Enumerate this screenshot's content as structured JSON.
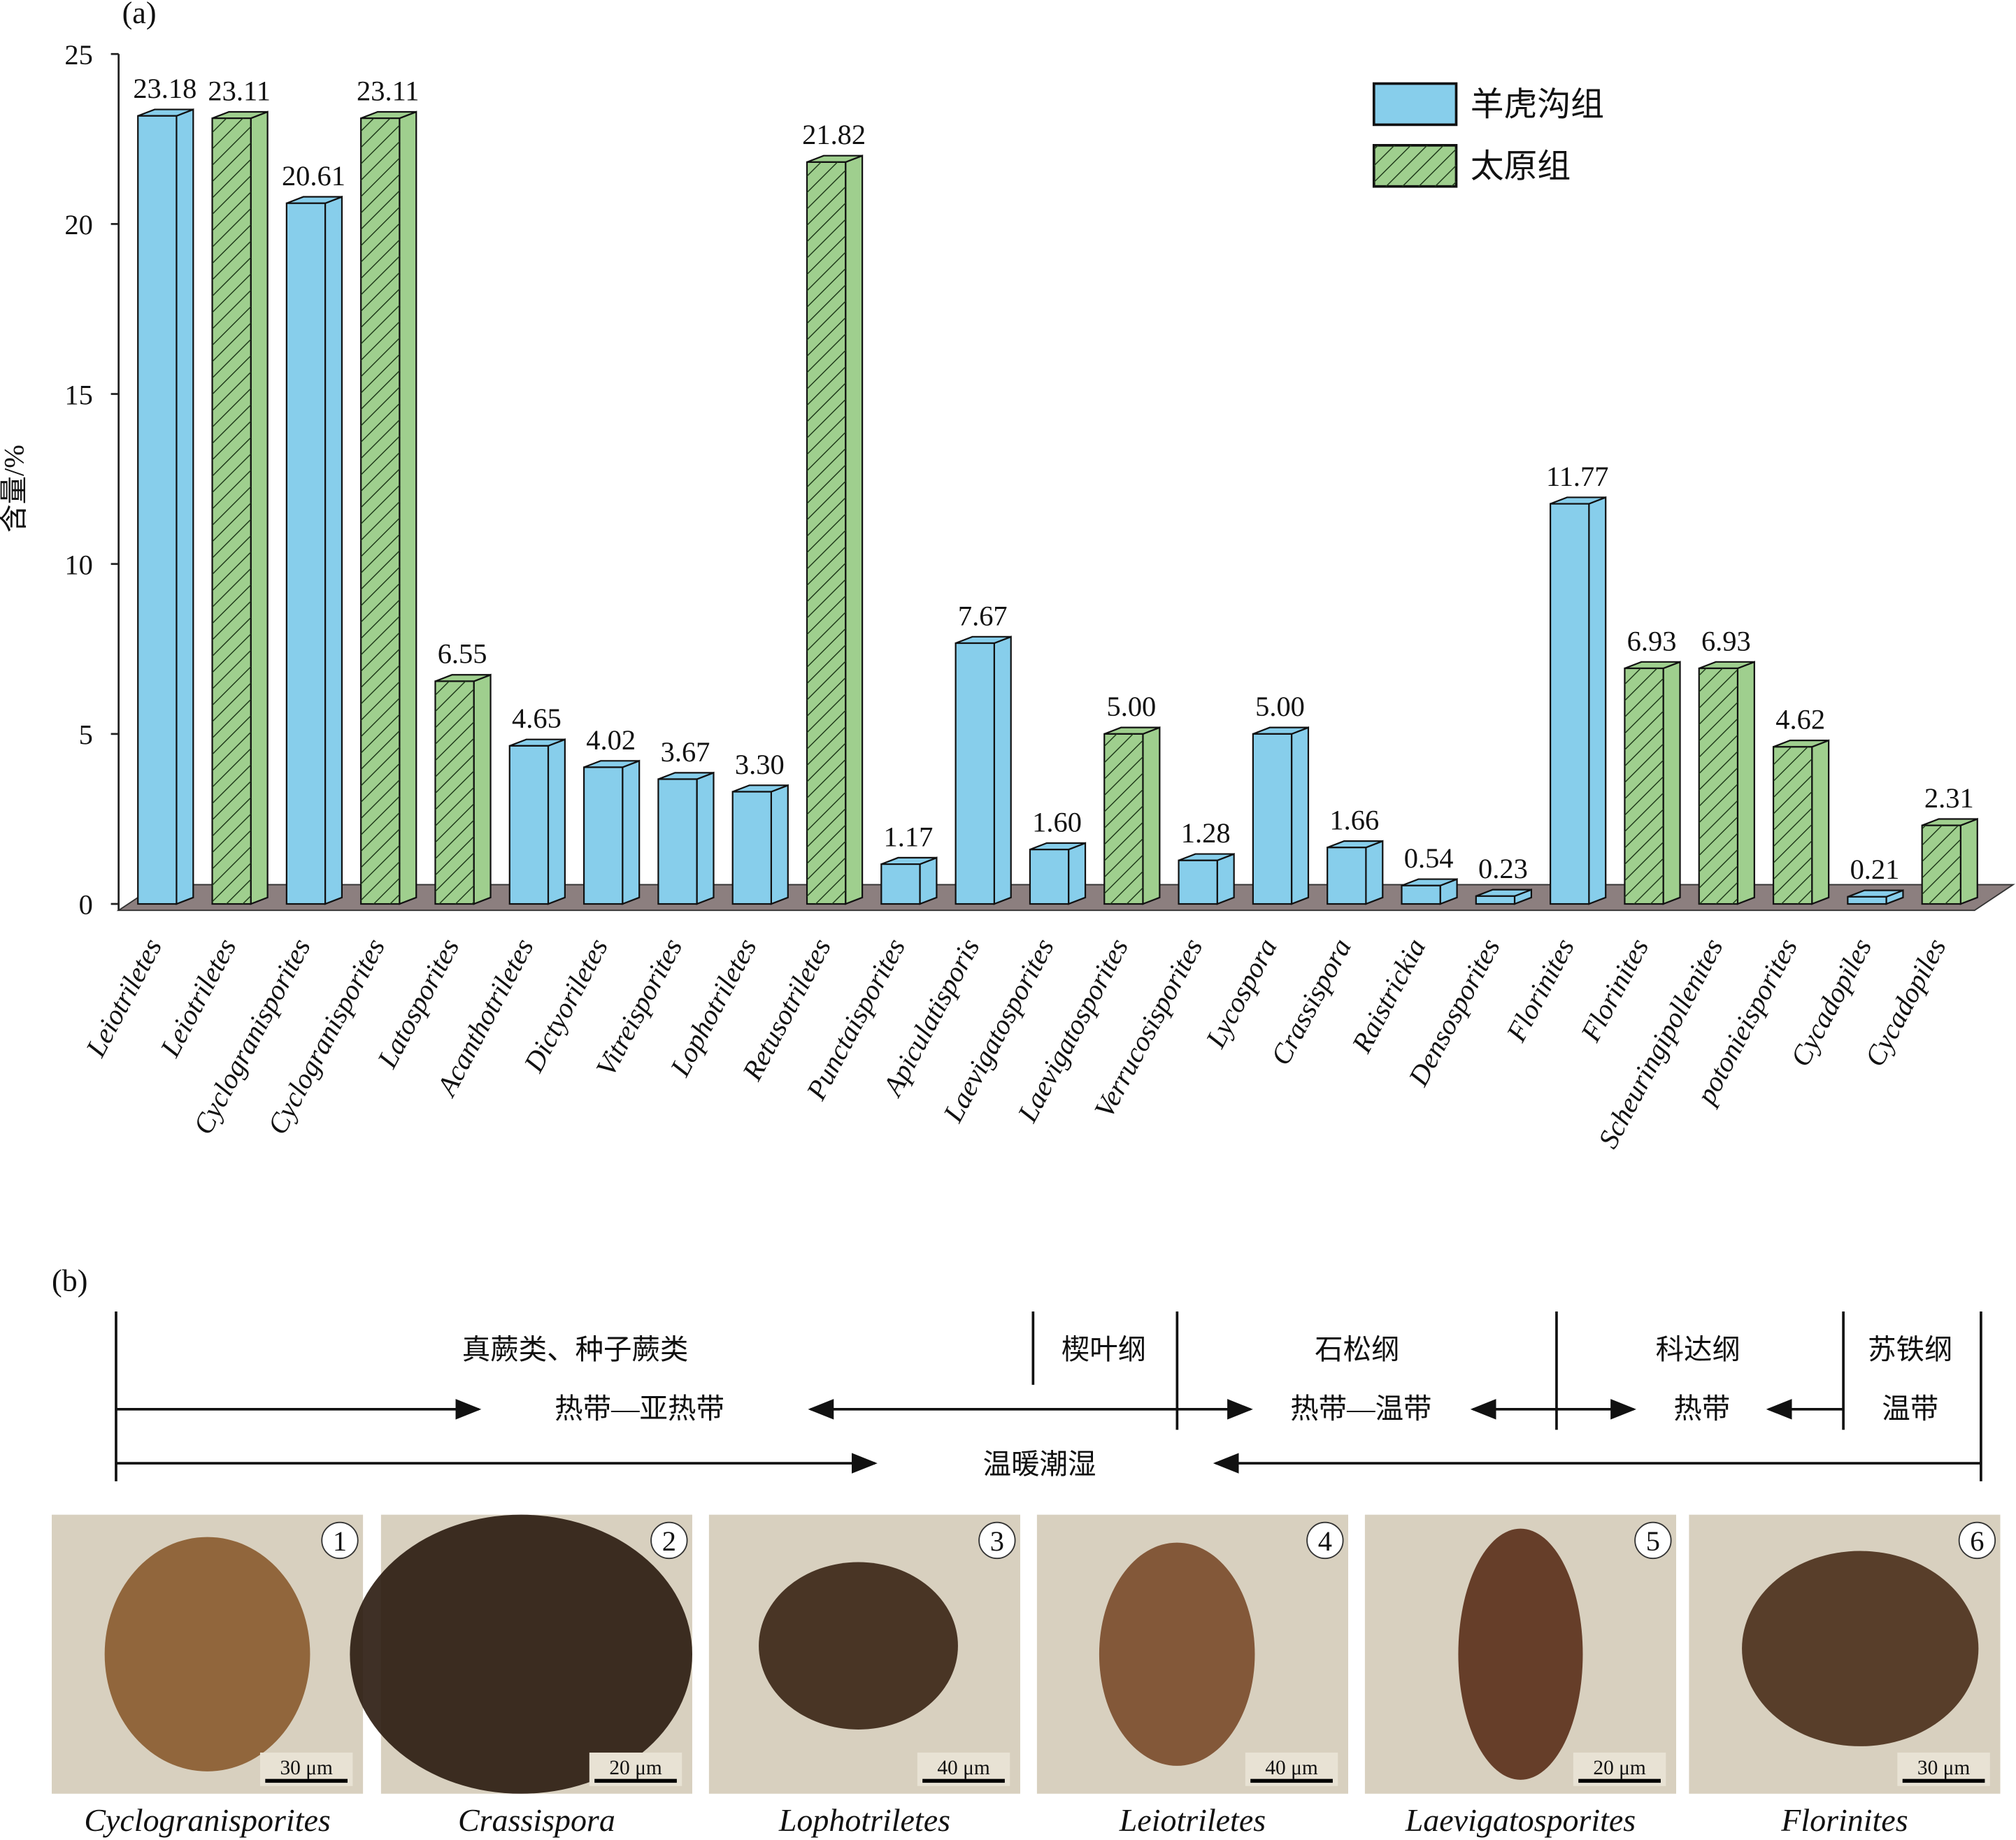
{
  "chart_data": {
    "type": "bar3d",
    "panel_label": "(a)",
    "ylabel": "含量/%",
    "categories": [
      "Leiotriletes",
      "Leiotriletes",
      "Cyclogranisporites",
      "Cyclogranisporites",
      "Latosporites",
      "Acanthotriletes",
      "Dictyoriletes",
      "Vitreisporites",
      "Lophotriletes",
      "Retusotriletes",
      "Punctaisporites",
      "Apiculatisporis",
      "Laevigatosporites",
      "Laevigatosporites",
      "Verrucosisporites",
      "Lycospora",
      "Crassispora",
      "Raistrickia",
      "Densosporites",
      "Florinites",
      "Florinites",
      "Scheuringipollenites",
      "potonieisporites",
      "Cycadopiles",
      "Cycadopiles"
    ],
    "series": [
      {
        "name": "羊虎沟组",
        "color": "#87ceeb",
        "hatch": false,
        "values": [
          23.18,
          null,
          20.61,
          null,
          null,
          4.65,
          4.02,
          3.67,
          3.3,
          null,
          1.17,
          7.67,
          1.6,
          null,
          1.28,
          5,
          1.66,
          0.54,
          0.23,
          11.77,
          null,
          null,
          null,
          0.21,
          null
        ],
        "value_labels": [
          "23.18",
          null,
          "20.61",
          null,
          null,
          "4.65",
          "4.02",
          "3.67",
          "3.30",
          null,
          "1.17",
          "7.67",
          "1.60",
          null,
          "1.28",
          "5.00",
          "1.66",
          "0.54",
          "0.23",
          "11.77",
          null,
          null,
          null,
          "0.21",
          null
        ]
      },
      {
        "name": "太原组",
        "color": "#9fcf8e",
        "hatch": true,
        "values": [
          null,
          23.11,
          null,
          23.11,
          6.55,
          null,
          null,
          null,
          null,
          21.82,
          null,
          null,
          null,
          5,
          null,
          null,
          null,
          null,
          null,
          null,
          6.93,
          6.93,
          4.62,
          null,
          2.31
        ],
        "value_labels": [
          null,
          "23.11",
          null,
          "23.11",
          "6.55",
          null,
          null,
          null,
          null,
          "21.82",
          null,
          null,
          null,
          "5.00",
          null,
          null,
          null,
          null,
          null,
          null,
          "6.93",
          "6.93",
          "4.62",
          null,
          "2.31"
        ]
      }
    ],
    "ylim": [
      0,
      25
    ],
    "yticks": [
      0,
      5,
      10,
      15,
      20,
      25
    ],
    "legend": "top-right"
  },
  "panel_b": {
    "label": "(b)",
    "groups": [
      "真蕨类、种子蕨类",
      "楔叶纲",
      "石松纲",
      "科达纲",
      "苏铁纲"
    ],
    "climates": [
      "热带—亚热带",
      "热带—温带",
      "热带",
      "温带"
    ],
    "humidity": "温暖潮湿",
    "photos": [
      {
        "number": "1",
        "scale": "30 μm",
        "caption": "Cyclogranisporites"
      },
      {
        "number": "2",
        "scale": "20 μm",
        "caption": "Crassispora"
      },
      {
        "number": "3",
        "scale": "40 μm",
        "caption": "Lophotriletes"
      },
      {
        "number": "4",
        "scale": "40 μm",
        "caption": "Leiotriletes"
      },
      {
        "number": "5",
        "scale": "20 μm",
        "caption": "Laevigatosporites"
      },
      {
        "number": "6",
        "scale": "30 μm",
        "caption": "Florinites"
      }
    ]
  }
}
